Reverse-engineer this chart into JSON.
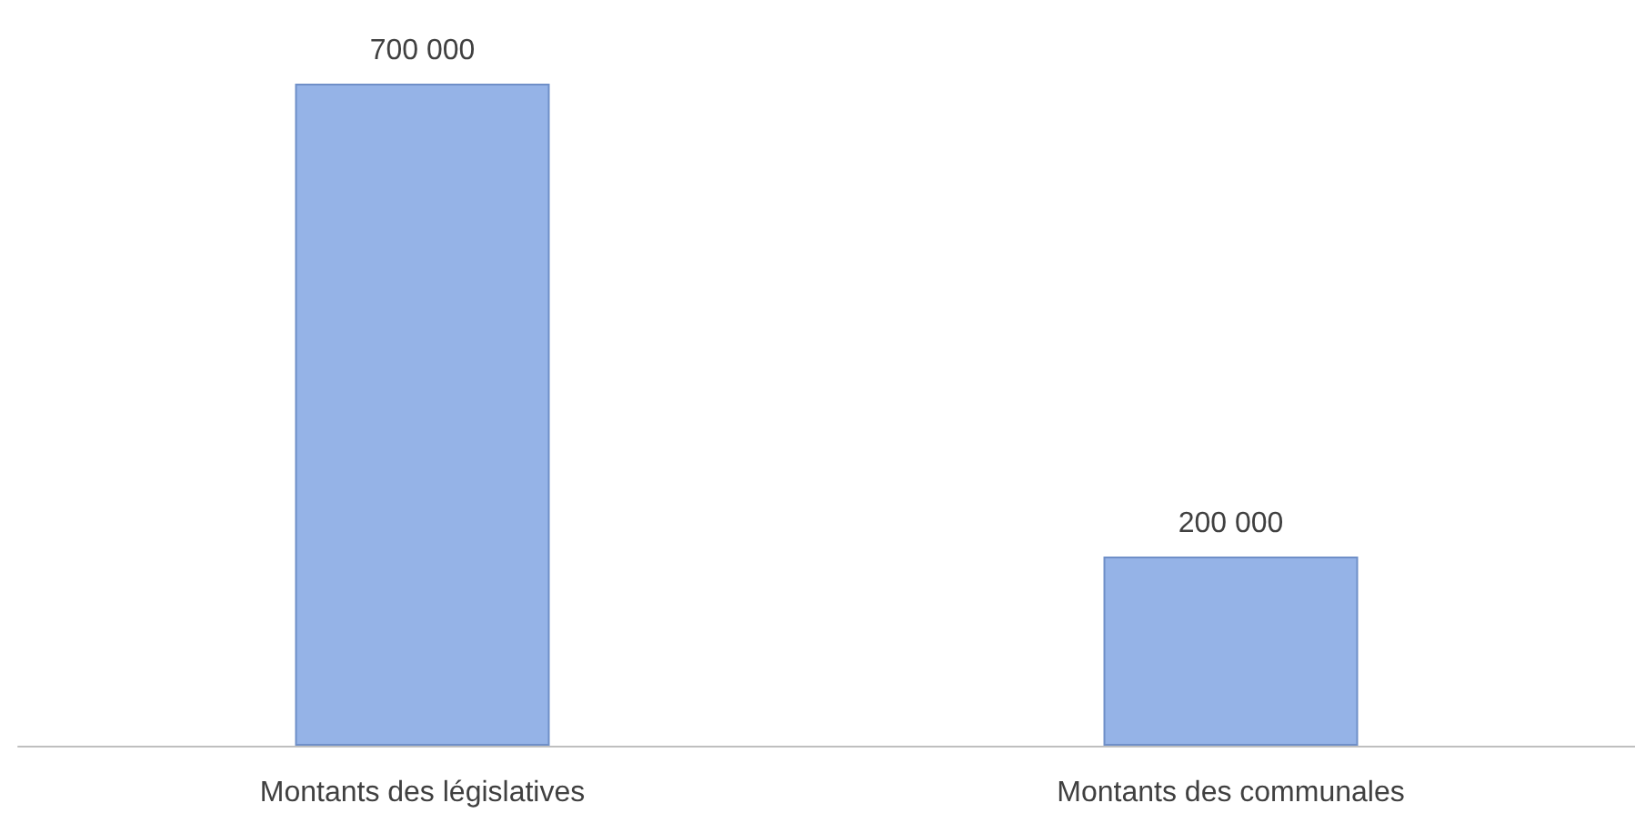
{
  "chart_data": {
    "type": "bar",
    "categories": [
      "Montants des législatives",
      "Montants des communales"
    ],
    "values": [
      700000,
      200000
    ],
    "color": "#95b3e7",
    "data_labels": true
  }
}
